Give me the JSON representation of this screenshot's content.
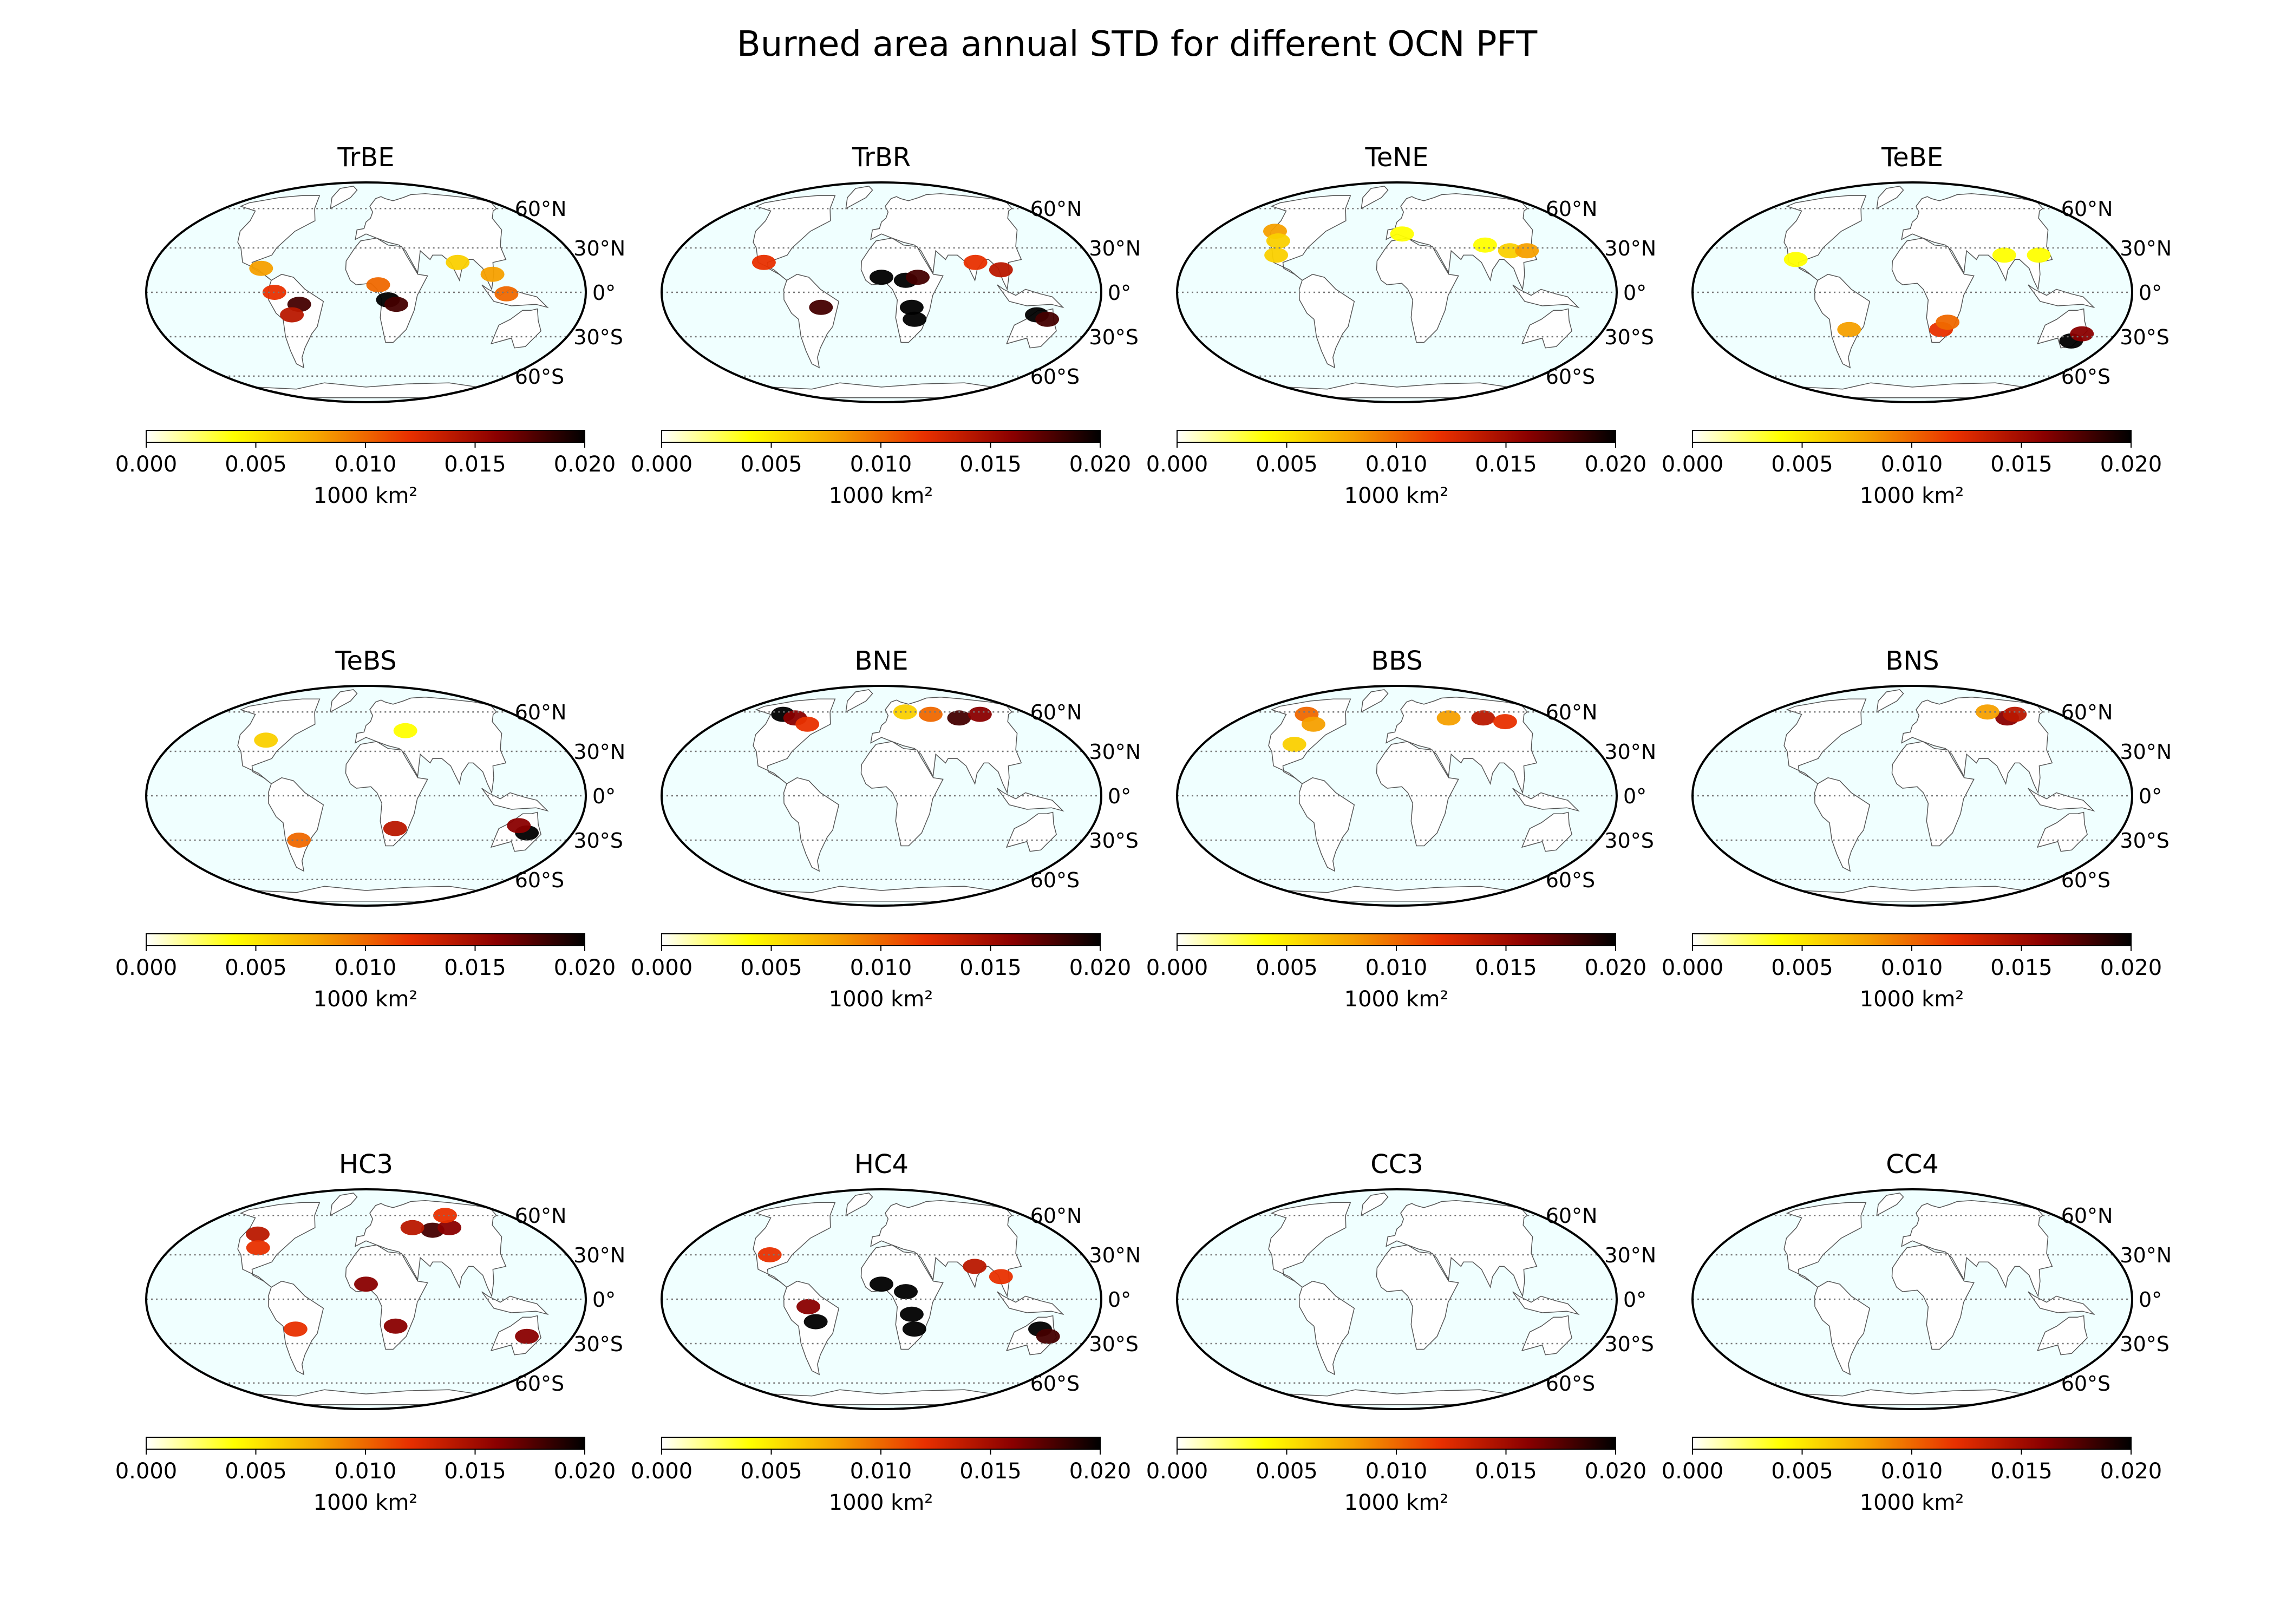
{
  "figure": {
    "title": "Burned area annual STD for different OCN PFT"
  },
  "chart_data": {
    "type": "heatmap",
    "projection": "mollweide",
    "grid": true,
    "colormap": "afmhot_r",
    "colorbar": {
      "orientation": "horizontal",
      "range": [
        0.0,
        0.02
      ],
      "ticks": [
        "0.000",
        "0.005",
        "0.010",
        "0.015",
        "0.020"
      ],
      "label": "1000 km²"
    },
    "parallels": [
      {
        "lat": 60,
        "label": "60°N"
      },
      {
        "lat": 30,
        "label": "30°N"
      },
      {
        "lat": 0,
        "label": "0°"
      },
      {
        "lat": -30,
        "label": "30°S"
      },
      {
        "lat": -60,
        "label": "60°S"
      }
    ],
    "panels": [
      {
        "title": "TrBE",
        "hotspots": [
          {
            "lon": -75,
            "lat": 0,
            "value": 0.012
          },
          {
            "lon": -55,
            "lat": -8,
            "value": 0.018
          },
          {
            "lon": -62,
            "lat": -15,
            "value": 0.014
          },
          {
            "lon": 18,
            "lat": -5,
            "value": 0.02
          },
          {
            "lon": 25,
            "lat": -8,
            "value": 0.018
          },
          {
            "lon": 10,
            "lat": 5,
            "value": 0.01
          },
          {
            "lon": 105,
            "lat": 12,
            "value": 0.008
          },
          {
            "lon": 115,
            "lat": -1,
            "value": 0.01
          },
          {
            "lon": -88,
            "lat": 16,
            "value": 0.008
          },
          {
            "lon": 78,
            "lat": 20,
            "value": 0.006
          }
        ]
      },
      {
        "title": "TrBR",
        "hotspots": [
          {
            "lon": 0,
            "lat": 10,
            "value": 0.02
          },
          {
            "lon": 20,
            "lat": 8,
            "value": 0.02
          },
          {
            "lon": 30,
            "lat": 10,
            "value": 0.018
          },
          {
            "lon": 25,
            "lat": -10,
            "value": 0.02
          },
          {
            "lon": 28,
            "lat": -18,
            "value": 0.02
          },
          {
            "lon": -50,
            "lat": -10,
            "value": 0.018
          },
          {
            "lon": 130,
            "lat": -15,
            "value": 0.02
          },
          {
            "lon": 140,
            "lat": -18,
            "value": 0.018
          },
          {
            "lon": -100,
            "lat": 20,
            "value": 0.012
          },
          {
            "lon": 80,
            "lat": 20,
            "value": 0.012
          },
          {
            "lon": 100,
            "lat": 15,
            "value": 0.014
          }
        ]
      },
      {
        "title": "TeNE",
        "hotspots": [
          {
            "lon": -120,
            "lat": 42,
            "value": 0.008
          },
          {
            "lon": -110,
            "lat": 35,
            "value": 0.006
          },
          {
            "lon": -105,
            "lat": 25,
            "value": 0.006
          },
          {
            "lon": 5,
            "lat": 40,
            "value": 0.004
          },
          {
            "lon": 100,
            "lat": 28,
            "value": 0.006
          },
          {
            "lon": 115,
            "lat": 28,
            "value": 0.008
          },
          {
            "lon": 80,
            "lat": 32,
            "value": 0.004
          }
        ]
      },
      {
        "title": "TeBE",
        "hotspots": [
          {
            "lon": 145,
            "lat": -33,
            "value": 0.02
          },
          {
            "lon": 150,
            "lat": -28,
            "value": 0.016
          },
          {
            "lon": 25,
            "lat": -25,
            "value": 0.012
          },
          {
            "lon": 30,
            "lat": -20,
            "value": 0.01
          },
          {
            "lon": -55,
            "lat": -25,
            "value": 0.008
          },
          {
            "lon": -100,
            "lat": 22,
            "value": 0.004
          },
          {
            "lon": 110,
            "lat": 25,
            "value": 0.004
          },
          {
            "lon": 80,
            "lat": 25,
            "value": 0.004
          }
        ]
      },
      {
        "title": "TeBS",
        "hotspots": [
          {
            "lon": 140,
            "lat": -25,
            "value": 0.02
          },
          {
            "lon": 130,
            "lat": -20,
            "value": 0.016
          },
          {
            "lon": 25,
            "lat": -22,
            "value": 0.014
          },
          {
            "lon": -60,
            "lat": -30,
            "value": 0.01
          },
          {
            "lon": -95,
            "lat": 38,
            "value": 0.006
          },
          {
            "lon": 40,
            "lat": 45,
            "value": 0.004
          }
        ]
      },
      {
        "title": "BNE",
        "hotspots": [
          {
            "lon": -120,
            "lat": 58,
            "value": 0.02
          },
          {
            "lon": -100,
            "lat": 55,
            "value": 0.016
          },
          {
            "lon": -80,
            "lat": 50,
            "value": 0.012
          },
          {
            "lon": 90,
            "lat": 55,
            "value": 0.018
          },
          {
            "lon": 120,
            "lat": 58,
            "value": 0.016
          },
          {
            "lon": 60,
            "lat": 58,
            "value": 0.01
          },
          {
            "lon": 30,
            "lat": 60,
            "value": 0.006
          }
        ]
      },
      {
        "title": "BBS",
        "hotspots": [
          {
            "lon": -110,
            "lat": 58,
            "value": 0.01
          },
          {
            "lon": -90,
            "lat": 50,
            "value": 0.008
          },
          {
            "lon": -95,
            "lat": 35,
            "value": 0.006
          },
          {
            "lon": 100,
            "lat": 55,
            "value": 0.014
          },
          {
            "lon": 120,
            "lat": 52,
            "value": 0.012
          },
          {
            "lon": 60,
            "lat": 55,
            "value": 0.008
          }
        ]
      },
      {
        "title": "BNS",
        "hotspots": [
          {
            "lon": 110,
            "lat": 55,
            "value": 0.016
          },
          {
            "lon": 125,
            "lat": 58,
            "value": 0.014
          },
          {
            "lon": 95,
            "lat": 60,
            "value": 0.008
          }
        ]
      },
      {
        "title": "HC3",
        "hotspots": [
          {
            "lon": -110,
            "lat": 45,
            "value": 0.014
          },
          {
            "lon": -100,
            "lat": 35,
            "value": 0.012
          },
          {
            "lon": 70,
            "lat": 48,
            "value": 0.018
          },
          {
            "lon": 90,
            "lat": 50,
            "value": 0.016
          },
          {
            "lon": 50,
            "lat": 50,
            "value": 0.014
          },
          {
            "lon": 0,
            "lat": 10,
            "value": 0.016
          },
          {
            "lon": 25,
            "lat": -18,
            "value": 0.016
          },
          {
            "lon": -60,
            "lat": -20,
            "value": 0.012
          },
          {
            "lon": 140,
            "lat": -25,
            "value": 0.016
          },
          {
            "lon": 100,
            "lat": 60,
            "value": 0.012
          }
        ]
      },
      {
        "title": "HC4",
        "hotspots": [
          {
            "lon": 0,
            "lat": 10,
            "value": 0.02
          },
          {
            "lon": 20,
            "lat": 5,
            "value": 0.02
          },
          {
            "lon": 25,
            "lat": -10,
            "value": 0.02
          },
          {
            "lon": 28,
            "lat": -20,
            "value": 0.02
          },
          {
            "lon": -55,
            "lat": -15,
            "value": 0.02
          },
          {
            "lon": -60,
            "lat": -5,
            "value": 0.016
          },
          {
            "lon": 135,
            "lat": -20,
            "value": 0.02
          },
          {
            "lon": 145,
            "lat": -25,
            "value": 0.018
          },
          {
            "lon": -100,
            "lat": 30,
            "value": 0.012
          },
          {
            "lon": 80,
            "lat": 22,
            "value": 0.014
          },
          {
            "lon": 100,
            "lat": 15,
            "value": 0.012
          }
        ]
      },
      {
        "title": "CC3",
        "hotspots": []
      },
      {
        "title": "CC4",
        "hotspots": []
      }
    ]
  }
}
